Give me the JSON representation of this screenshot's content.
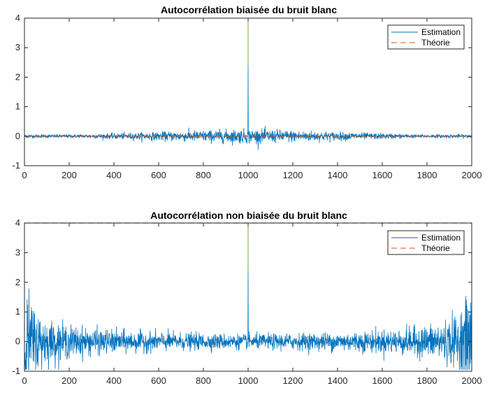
{
  "chart_data": [
    {
      "type": "line",
      "title": "Autocorrélation biaisée du bruit blanc",
      "xlabel": "",
      "ylabel": "",
      "xlim": [
        0,
        2000
      ],
      "ylim": [
        -1,
        4
      ],
      "xticks": [
        "0",
        "200",
        "400",
        "600",
        "800",
        "1000",
        "1200",
        "1400",
        "1600",
        "1800",
        "2000"
      ],
      "yticks": [
        "-1",
        "0",
        "1",
        "2",
        "3",
        "4"
      ],
      "grid": false,
      "legend_position": "top-right",
      "series": [
        {
          "name": "Estimation",
          "color": "#0072BD",
          "style": "solid",
          "description": "noise around 0, amplitude ~0.1-0.3, peak at lag 1000",
          "peak": {
            "x": 1000,
            "y": 2.4
          },
          "noise_amplitude": 0.12,
          "envelope": "biased"
        },
        {
          "name": "Théorie",
          "color": "#D95319",
          "style": "dashed",
          "values": {
            "x": [
              0,
              2000
            ],
            "y": [
              0,
              0
            ]
          },
          "spike": {
            "x": 1000,
            "y": 4,
            "color": "#77AC30"
          }
        }
      ]
    },
    {
      "type": "line",
      "title": "Autocorrélation non biaisée du bruit blanc",
      "xlabel": "",
      "ylabel": "",
      "xlim": [
        0,
        2000
      ],
      "ylim": [
        -1,
        4
      ],
      "xticks": [
        "0",
        "200",
        "400",
        "600",
        "800",
        "1000",
        "1200",
        "1400",
        "1600",
        "1800",
        "2000"
      ],
      "yticks": [
        "-1",
        "0",
        "1",
        "2",
        "3",
        "4"
      ],
      "grid": false,
      "legend_position": "top-right",
      "series": [
        {
          "name": "Estimation",
          "color": "#0072BD",
          "style": "solid",
          "description": "noise around 0 growing toward the edges (up to ~1.7 near lags 20 and 1980), peak at lag 1000",
          "peak": {
            "x": 1000,
            "y": 2.4
          },
          "noise_amplitude": 0.12,
          "envelope": "unbiased"
        },
        {
          "name": "Théorie",
          "color": "#D95319",
          "style": "dashed",
          "values": {
            "x": [
              0,
              2000
            ],
            "y": [
              4,
              4
            ]
          },
          "spike": {
            "x": 1000,
            "y": 4,
            "color": "#77AC30"
          }
        }
      ]
    }
  ]
}
